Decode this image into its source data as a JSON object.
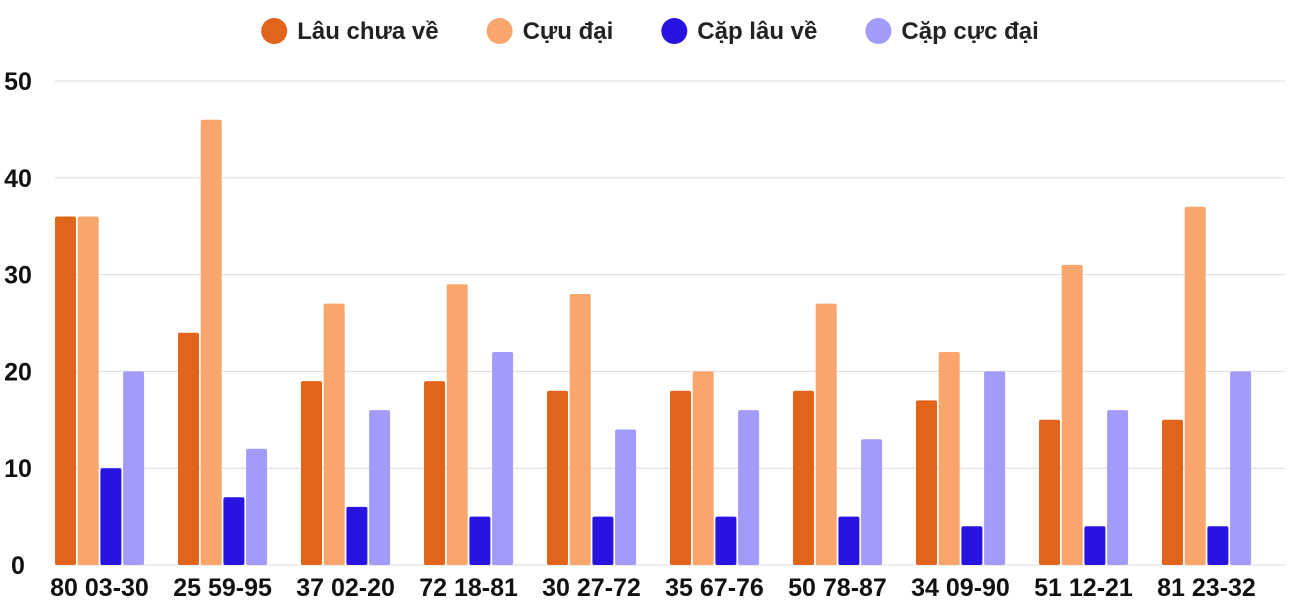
{
  "chart_data": {
    "type": "bar",
    "categories": [
      "80 03-30",
      "25 59-95",
      "37 02-20",
      "72 18-81",
      "30 27-72",
      "35 67-76",
      "50 78-87",
      "34 09-90",
      "51 12-21",
      "81 23-32"
    ],
    "series": [
      {
        "name": "Lâu chưa về",
        "color": "#e2641a",
        "values": [
          36,
          24,
          19,
          19,
          18,
          18,
          18,
          17,
          15,
          15
        ]
      },
      {
        "name": "Cựu đại",
        "color": "#f9a66c",
        "values": [
          36,
          46,
          27,
          29,
          28,
          20,
          27,
          22,
          31,
          37
        ]
      },
      {
        "name": "Cặp lâu về",
        "color": "#2814e0",
        "values": [
          10,
          7,
          6,
          5,
          5,
          5,
          5,
          4,
          4,
          4
        ]
      },
      {
        "name": "Cặp cực đại",
        "color": "#a29bf9",
        "values": [
          20,
          12,
          16,
          22,
          14,
          16,
          13,
          20,
          16,
          20
        ]
      }
    ],
    "yticks": [
      0,
      10,
      20,
      30,
      40,
      50
    ],
    "ylim": [
      0,
      50
    ],
    "grid": true,
    "legend_position": "top-center",
    "title": "",
    "xlabel": "",
    "ylabel": ""
  }
}
